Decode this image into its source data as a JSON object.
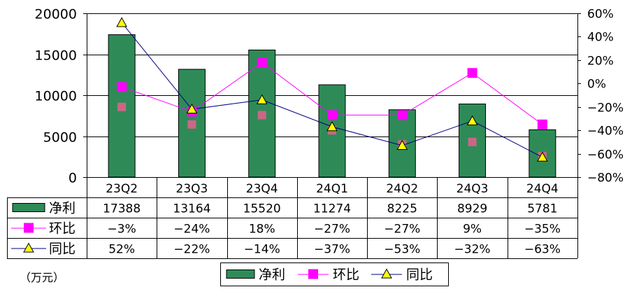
{
  "unit_label": "（万元）",
  "colors": {
    "bar": "#2e8b57",
    "qoq": "#ff00ff",
    "qoq_secondary": "#cc6688",
    "yoy_marker": "#ffff00",
    "yoy_line": "#000080"
  },
  "chart_data": {
    "type": "bar",
    "categories": [
      "23Q2",
      "23Q3",
      "23Q4",
      "24Q1",
      "24Q2",
      "24Q3",
      "24Q4"
    ],
    "series": [
      {
        "name": "净利",
        "type": "bar",
        "axis": "left",
        "values": [
          17388,
          13164,
          15520,
          11274,
          8225,
          8929,
          5781
        ]
      },
      {
        "name": "环比",
        "type": "line",
        "axis": "right",
        "values": [
          -3,
          -24,
          18,
          -27,
          -27,
          9,
          -35
        ]
      },
      {
        "name": "同比",
        "type": "line",
        "axis": "right",
        "values": [
          52,
          -22,
          -14,
          -37,
          -53,
          -32,
          -63
        ]
      }
    ],
    "secondary_markers": [
      -20,
      -35,
      -27,
      -40,
      -52,
      -50,
      -62
    ],
    "y_left": {
      "ylim": [
        0,
        20000
      ],
      "ticks": [
        "0",
        "5000",
        "10000",
        "15000",
        "20000"
      ]
    },
    "y_right": {
      "ylim": [
        -80,
        60
      ],
      "ticks": [
        "-80%",
        "-60%",
        "-40%",
        "-20%",
        "0%",
        "20%",
        "40%",
        "60%"
      ]
    },
    "table": {
      "rows": [
        {
          "label": "净利",
          "cells": [
            "17388",
            "13164",
            "15520",
            "11274",
            "8225",
            "8929",
            "5781"
          ]
        },
        {
          "label": "环比",
          "cells": [
            "-3%",
            "-24%",
            "18%",
            "-27%",
            "-27%",
            "9%",
            "-35%"
          ]
        },
        {
          "label": "同比",
          "cells": [
            "52%",
            "-22%",
            "-14%",
            "-37%",
            "-53%",
            "-32%",
            "-63%"
          ]
        }
      ]
    },
    "legend": [
      "净利",
      "环比",
      "同比"
    ],
    "legend_position": "bottom",
    "grid": true
  }
}
